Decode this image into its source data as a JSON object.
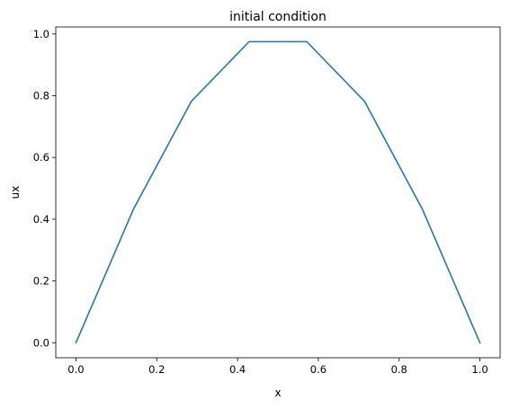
{
  "chart_data": {
    "type": "line",
    "title": "initial condition",
    "xlabel": "x",
    "ylabel": "ux",
    "xlim": [
      -0.05,
      1.05
    ],
    "ylim": [
      -0.0487,
      1.0227
    ],
    "xticks": [
      0.0,
      0.2,
      0.4,
      0.6,
      0.8,
      1.0
    ],
    "xtick_labels": [
      "0.0",
      "0.2",
      "0.4",
      "0.6",
      "0.8",
      "1.0"
    ],
    "yticks": [
      0.0,
      0.2,
      0.4,
      0.6,
      0.8,
      1.0
    ],
    "ytick_labels": [
      "0.0",
      "0.2",
      "0.4",
      "0.6",
      "0.8",
      "1.0"
    ],
    "grid": false,
    "series": [
      {
        "color": "#1f77b4",
        "x": [
          0.0,
          0.1429,
          0.2857,
          0.4286,
          0.5714,
          0.7143,
          0.8571,
          1.0
        ],
        "y": [
          0.0,
          0.434,
          0.782,
          0.975,
          0.975,
          0.782,
          0.434,
          0.0
        ]
      }
    ]
  }
}
